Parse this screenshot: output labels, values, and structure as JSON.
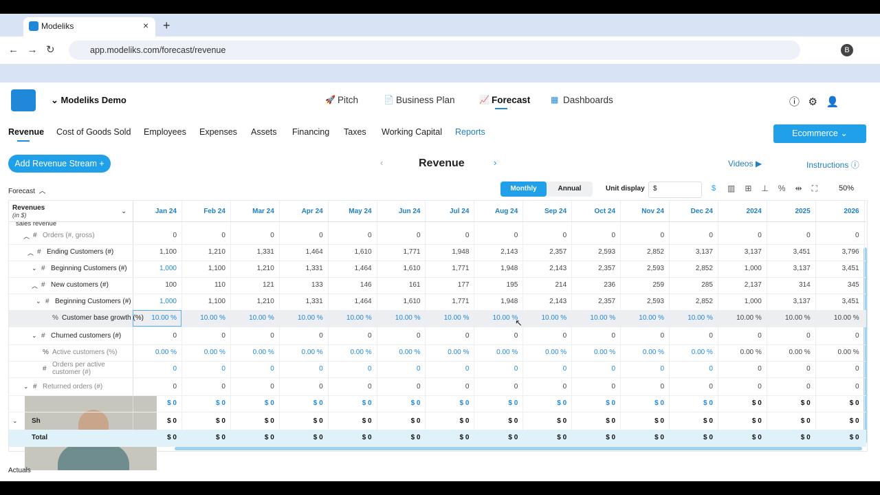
{
  "browser": {
    "tab_title": "Modeliks",
    "url": "app.modeliks.com/forecast/revenue",
    "profile": "B"
  },
  "app": {
    "company": "Modeliks Demo",
    "nav": [
      "Pitch",
      "Business Plan",
      "Forecast",
      "Dashboards"
    ],
    "tabs": [
      "Revenue",
      "Cost of Goods Sold",
      "Employees",
      "Expenses",
      "Assets",
      "Financing",
      "Taxes",
      "Working Capital",
      "Reports"
    ],
    "template_button": "Ecommerce",
    "add_button": "Add Revenue Stream",
    "page_title": "Revenue",
    "videos": "Videos",
    "instructions": "Instructions"
  },
  "toolbar": {
    "section": "Forecast",
    "period_toggle": [
      "Monthly",
      "Annual"
    ],
    "unit_label": "Unit display",
    "unit_value": "$",
    "currency_icon": "$",
    "zoom": "50%"
  },
  "table": {
    "title": "Revenues",
    "subtitle": "(in $)",
    "columns": [
      "Jan 24",
      "Feb 24",
      "Mar 24",
      "Apr 24",
      "May 24",
      "Jun 24",
      "Jul 24",
      "Aug 24",
      "Sep 24",
      "Oct 24",
      "Nov 24",
      "Dec 24",
      "2024",
      "2025",
      "2026"
    ],
    "partial_row": "sales revenue",
    "rows": [
      {
        "prefix": "#",
        "label": "Orders (#, gross)",
        "values": [
          "0",
          "0",
          "0",
          "0",
          "0",
          "0",
          "0",
          "0",
          "0",
          "0",
          "0",
          "0",
          "0",
          "0",
          "0"
        ]
      },
      {
        "prefix": "#",
        "label": "Ending Customers (#)",
        "values": [
          "1,100",
          "1,210",
          "1,331",
          "1,464",
          "1,610",
          "1,771",
          "1,948",
          "2,143",
          "2,357",
          "2,593",
          "2,852",
          "3,137",
          "3,137",
          "3,451",
          "3,796"
        ]
      },
      {
        "prefix": "#",
        "label": "Beginning Customers (#)",
        "values": [
          "1,000",
          "1,100",
          "1,210",
          "1,331",
          "1,464",
          "1,610",
          "1,771",
          "1,948",
          "2,143",
          "2,357",
          "2,593",
          "2,852",
          "1,000",
          "3,137",
          "3,451"
        ]
      },
      {
        "prefix": "#",
        "label": "New customers (#)",
        "values": [
          "100",
          "110",
          "121",
          "133",
          "146",
          "161",
          "177",
          "195",
          "214",
          "236",
          "259",
          "285",
          "2,137",
          "314",
          "345"
        ]
      },
      {
        "prefix": "#",
        "label": "Beginning Customers (#)",
        "values": [
          "1,000",
          "1,100",
          "1,210",
          "1,331",
          "1,464",
          "1,610",
          "1,771",
          "1,948",
          "2,143",
          "2,357",
          "2,593",
          "2,852",
          "1,000",
          "3,137",
          "3,451"
        ]
      },
      {
        "prefix": "%",
        "label": "Customer base growth (%)",
        "values": [
          "10.00 %",
          "10.00 %",
          "10.00 %",
          "10.00 %",
          "10.00 %",
          "10.00 %",
          "10.00 %",
          "10.00 %",
          "10.00 %",
          "10.00 %",
          "10.00 %",
          "10.00 %",
          "10.00 %",
          "10.00 %",
          "10.00 %"
        ]
      },
      {
        "prefix": "#",
        "label": "Churned customers (#)",
        "values": [
          "0",
          "0",
          "0",
          "0",
          "0",
          "0",
          "0",
          "0",
          "0",
          "0",
          "0",
          "0",
          "0",
          "0",
          "0"
        ]
      },
      {
        "prefix": "%",
        "label": "Active customers (%)",
        "values": [
          "0.00 %",
          "0.00 %",
          "0.00 %",
          "0.00 %",
          "0.00 %",
          "0.00 %",
          "0.00 %",
          "0.00 %",
          "0.00 %",
          "0.00 %",
          "0.00 %",
          "0.00 %",
          "0.00 %",
          "0.00 %",
          "0.00 %"
        ]
      },
      {
        "prefix": "#",
        "label": "Orders per active customer (#)",
        "values": [
          "0",
          "0",
          "0",
          "0",
          "0",
          "0",
          "0",
          "0",
          "0",
          "0",
          "0",
          "0",
          "0",
          "0",
          "0"
        ]
      },
      {
        "prefix": "#",
        "label": "Returned orders (#)",
        "values": [
          "0",
          "0",
          "0",
          "0",
          "0",
          "0",
          "0",
          "0",
          "0",
          "0",
          "0",
          "0",
          "0",
          "0",
          "0"
        ]
      },
      {
        "values": [
          "$ 0",
          "$ 0",
          "$ 0",
          "$ 0",
          "$ 0",
          "$ 0",
          "$ 0",
          "$ 0",
          "$ 0",
          "$ 0",
          "$ 0",
          "$ 0",
          "$ 0",
          "$ 0",
          "$ 0"
        ]
      },
      {
        "label": "Sh",
        "values": [
          "$ 0",
          "$ 0",
          "$ 0",
          "$ 0",
          "$ 0",
          "$ 0",
          "$ 0",
          "$ 0",
          "$ 0",
          "$ 0",
          "$ 0",
          "$ 0",
          "$ 0",
          "$ 0",
          "$ 0"
        ]
      },
      {
        "label": "Total",
        "values": [
          "$ 0",
          "$ 0",
          "$ 0",
          "$ 0",
          "$ 0",
          "$ 0",
          "$ 0",
          "$ 0",
          "$ 0",
          "$ 0",
          "$ 0",
          "$ 0",
          "$ 0",
          "$ 0",
          "$ 0"
        ]
      }
    ]
  },
  "footer": {
    "section": "Actuals"
  }
}
